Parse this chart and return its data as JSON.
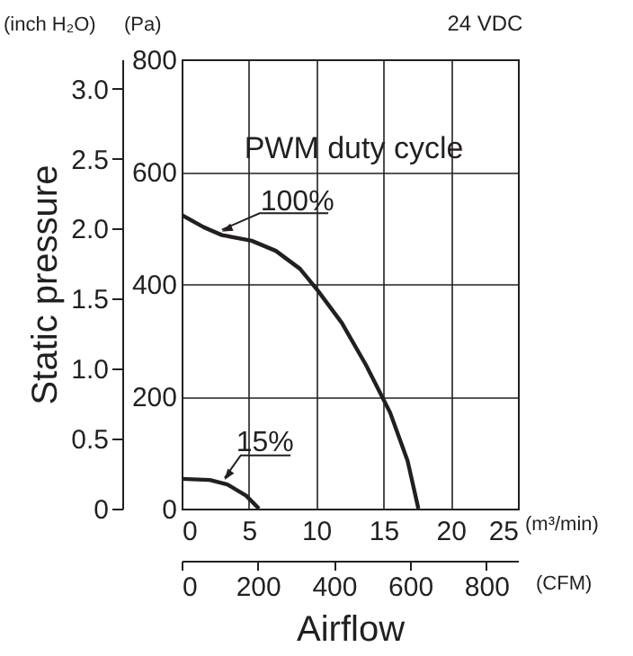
{
  "chart_data": {
    "type": "line",
    "title": "24 VDC",
    "xlabel": "Airflow",
    "y2label": "Static pressure",
    "legend_title": "PWM duty cycle",
    "annotations": [
      "(inch H₂O)",
      "(Pa)",
      "(m³/min)",
      "(CFM)"
    ],
    "xlim": [
      0,
      25
    ],
    "xticks": [
      0,
      5,
      10,
      15,
      20,
      25
    ],
    "x2lim": [
      0,
      883
    ],
    "x2ticks": [
      0,
      200,
      400,
      600,
      800
    ],
    "ylim": [
      0,
      800
    ],
    "yticks": [
      0,
      200,
      400,
      600,
      800
    ],
    "y2lim": [
      0,
      3.21
    ],
    "y2ticks": [
      0,
      0.5,
      {
        "value": 1,
        "label": "1.0"
      },
      1.5,
      {
        "value": 2,
        "label": "2.0"
      },
      2.5,
      {
        "value": 3,
        "label": "3.0"
      }
    ],
    "grid": true,
    "marker": "none",
    "line_style": "solid",
    "series": [
      {
        "name": "100%",
        "color": "#231f20",
        "x": [
          0,
          1.65,
          3,
          5.2,
          7,
          8.8,
          10.1,
          11.9,
          13.7,
          15.5,
          16.8,
          17.6
        ],
        "values": [
          523,
          501,
          487,
          477,
          459,
          427,
          389,
          331,
          256,
          171,
          85,
          0
        ]
      },
      {
        "name": "15%",
        "color": "#231f20",
        "x": [
          0,
          2.1,
          3.4,
          4.8,
          5.75
        ],
        "values": [
          53,
          51,
          43,
          23,
          0
        ]
      }
    ]
  }
}
